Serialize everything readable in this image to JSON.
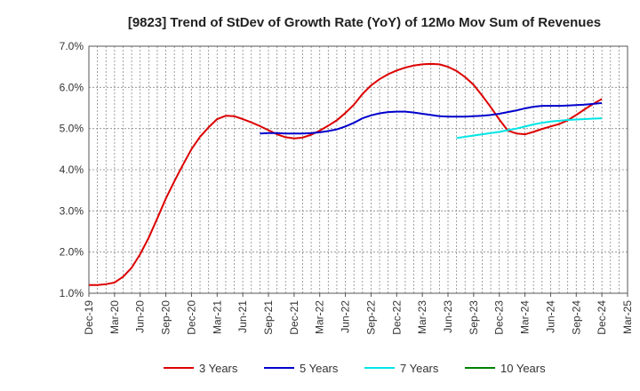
{
  "chart_data": {
    "type": "line",
    "title": "[9823]  Trend of StDev of Growth Rate (YoY) of 12Mo Mov Sum of Revenues",
    "xlabel": "",
    "ylabel": "",
    "ylim": [
      1.0,
      7.0
    ],
    "y_ticks": [
      "1.0%",
      "2.0%",
      "3.0%",
      "4.0%",
      "5.0%",
      "6.0%",
      "7.0%"
    ],
    "y_tick_values": [
      1.0,
      2.0,
      3.0,
      4.0,
      5.0,
      6.0,
      7.0
    ],
    "x_ticks": [
      "Dec-19",
      "Mar-20",
      "Jun-20",
      "Sep-20",
      "Dec-20",
      "Mar-21",
      "Jun-21",
      "Sep-21",
      "Dec-21",
      "Mar-22",
      "Jun-22",
      "Sep-22",
      "Dec-22",
      "Mar-23",
      "Jun-23",
      "Sep-23",
      "Dec-23",
      "Mar-24",
      "Jun-24",
      "Sep-24",
      "Dec-24",
      "Mar-25"
    ],
    "x_range_months": [
      0,
      63
    ],
    "grid": true,
    "legend_position": "bottom",
    "series": [
      {
        "name": "3 Years",
        "color": "#dd0000",
        "x": [
          0,
          1,
          2,
          3,
          4,
          5,
          6,
          7,
          8,
          9,
          10,
          11,
          12,
          13,
          14,
          15,
          16,
          17,
          18,
          19,
          20,
          21,
          22,
          23,
          24,
          25,
          26,
          27,
          28,
          29,
          30,
          31,
          32,
          33,
          34,
          35,
          36,
          37,
          38,
          39,
          40,
          41,
          42,
          43,
          44,
          45,
          46,
          47,
          48,
          49,
          50,
          51,
          52,
          53,
          54,
          55,
          56,
          57,
          58,
          59,
          60
        ],
        "values": [
          1.2,
          1.2,
          1.22,
          1.26,
          1.4,
          1.62,
          1.95,
          2.35,
          2.82,
          3.3,
          3.72,
          4.12,
          4.5,
          4.8,
          5.03,
          5.23,
          5.31,
          5.3,
          5.23,
          5.15,
          5.06,
          4.96,
          4.86,
          4.79,
          4.76,
          4.78,
          4.85,
          4.95,
          5.07,
          5.2,
          5.38,
          5.58,
          5.84,
          6.05,
          6.2,
          6.32,
          6.41,
          6.48,
          6.53,
          6.56,
          6.57,
          6.56,
          6.5,
          6.4,
          6.25,
          6.06,
          5.8,
          5.52,
          5.22,
          4.95,
          4.88,
          4.86,
          4.92,
          4.99,
          5.05,
          5.11,
          5.2,
          5.33,
          5.47,
          5.6,
          5.72
        ]
      },
      {
        "name": "5 Years",
        "color": "#0000cc",
        "x": [
          20,
          21,
          22,
          23,
          24,
          25,
          26,
          27,
          28,
          29,
          30,
          31,
          32,
          33,
          34,
          35,
          36,
          37,
          38,
          39,
          40,
          41,
          42,
          43,
          44,
          45,
          46,
          47,
          48,
          49,
          50,
          51,
          52,
          53,
          54,
          55,
          56,
          57,
          58,
          59,
          60
        ],
        "values": [
          4.88,
          4.89,
          4.89,
          4.88,
          4.88,
          4.88,
          4.89,
          4.91,
          4.94,
          4.98,
          5.05,
          5.14,
          5.25,
          5.32,
          5.37,
          5.4,
          5.41,
          5.41,
          5.39,
          5.36,
          5.33,
          5.3,
          5.29,
          5.29,
          5.29,
          5.3,
          5.31,
          5.33,
          5.36,
          5.4,
          5.44,
          5.49,
          5.53,
          5.55,
          5.55,
          5.55,
          5.56,
          5.57,
          5.58,
          5.6,
          5.62
        ]
      },
      {
        "name": "7 Years",
        "color": "#00e5e5",
        "x": [
          43,
          44,
          45,
          46,
          47,
          48,
          49,
          50,
          51,
          52,
          53,
          54,
          55,
          56,
          57,
          58,
          59,
          60
        ],
        "values": [
          4.77,
          4.8,
          4.83,
          4.86,
          4.89,
          4.92,
          4.96,
          5.0,
          5.05,
          5.1,
          5.14,
          5.17,
          5.19,
          5.21,
          5.22,
          5.23,
          5.24,
          5.25
        ]
      },
      {
        "name": "10 Years",
        "color": "#008000",
        "x": [],
        "values": []
      }
    ]
  }
}
